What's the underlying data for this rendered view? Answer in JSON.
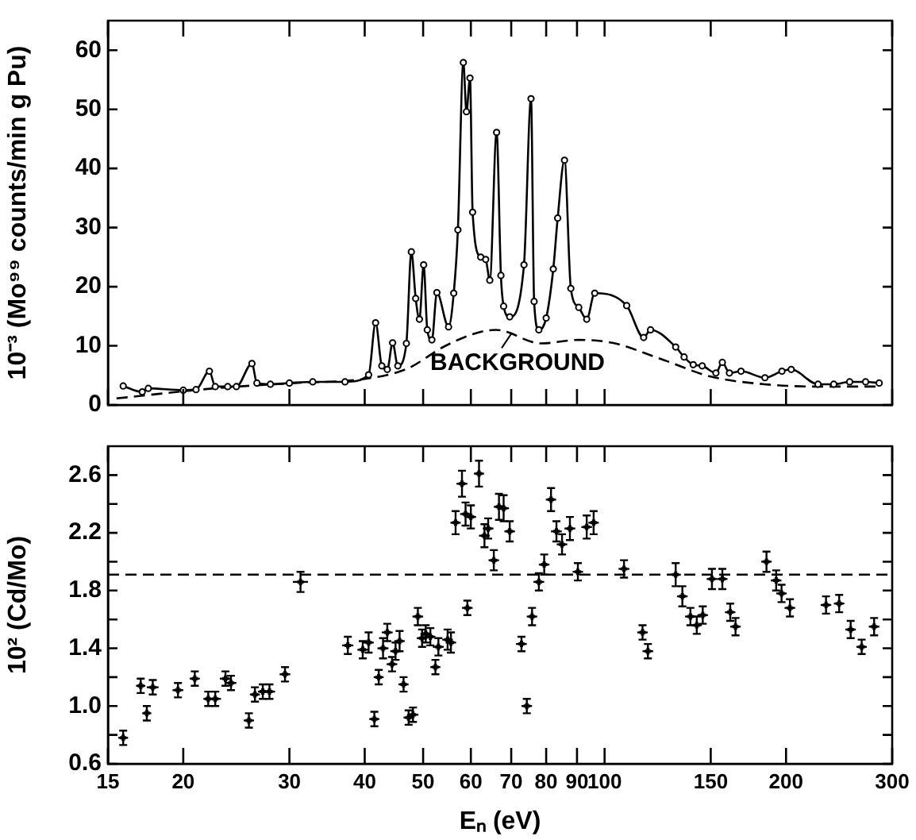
{
  "chart_data": [
    {
      "type": "line",
      "ylabel": "10⁻³ (Mo⁹⁹ counts/min g Pu)",
      "xlim": [
        15,
        300
      ],
      "xticks": [
        15,
        20,
        30,
        40,
        50,
        60,
        70,
        80,
        90,
        100,
        150,
        200,
        300
      ],
      "ylim": [
        0,
        65
      ],
      "yticks": [
        0,
        10,
        20,
        30,
        40,
        50,
        60
      ],
      "log": "x",
      "tick_labels": "y",
      "legend": false,
      "series": [
        {
          "color": "#000000",
          "marker": "circle",
          "line_style": "solid",
          "x": [
            15.9,
            17.1,
            17.5,
            20.0,
            21,
            22.1,
            22.6,
            23.7,
            24.5,
            26.0,
            26.5,
            27.9,
            30,
            32.8,
            37.1,
            40.6,
            41.7,
            42.7,
            43.6,
            44.5,
            45.4,
            46.9,
            47.8,
            48.6,
            49.3,
            50.1,
            50.8,
            51.7,
            52.7,
            55.1,
            56.2,
            57.1,
            58.3,
            59.0,
            59.8,
            60.4,
            62.3,
            63.5,
            64.5,
            66.2,
            67.3,
            68.0,
            69.6,
            73.5,
            75.5,
            76.4,
            77.8,
            80.0,
            82.2,
            83.6,
            85.8,
            87.9,
            90.6,
            93.4,
            96.3,
            108.8,
            116.1,
            119.2,
            131.2,
            135.5,
            140.3,
            145.2,
            153,
            156.8,
            161.1,
            168.4,
            184.5,
            196.9,
            204,
            226,
            240,
            255,
            271,
            285.5
          ],
          "values": [
            3.2,
            2.2,
            2.8,
            2.5,
            2.6,
            5.7,
            3.1,
            3.1,
            3.1,
            7.0,
            3.7,
            3.5,
            3.7,
            3.9,
            3.9,
            5.1,
            13.9,
            6.6,
            6.0,
            10.5,
            6.6,
            10.4,
            25.9,
            18.0,
            14.5,
            23.7,
            12.7,
            11.0,
            19.0,
            13.2,
            18.9,
            29.6,
            57.9,
            49.6,
            55.3,
            32.6,
            25.0,
            24.6,
            21.1,
            46.1,
            21.9,
            16.7,
            14.9,
            23.7,
            51.8,
            17.5,
            12.7,
            14.7,
            23.0,
            31.6,
            41.4,
            19.7,
            16.5,
            14.5,
            18.9,
            16.8,
            11.4,
            12.7,
            9.8,
            8.1,
            6.8,
            6.6,
            5.4,
            7.2,
            5.4,
            5.7,
            4.6,
            5.7,
            6.0,
            3.5,
            3.5,
            3.9,
            3.9,
            3.7
          ]
        },
        {
          "color": "#000000",
          "marker": "none",
          "line_style": "dashed",
          "x": [
            15.5,
            22.5,
            30.5,
            40,
            47,
            54,
            61,
            66,
            78.5,
            90.6,
            103,
            123,
            150,
            184,
            226,
            288
          ],
          "values": [
            1.1,
            2.8,
            3.7,
            4.4,
            6.1,
            9.8,
            12.1,
            12.7,
            10.4,
            11.0,
            10.5,
            7.9,
            4.8,
            3.5,
            3.1,
            3.1
          ]
        }
      ],
      "annotations": [
        {
          "text": "BACKGROUND",
          "x": 70,
          "y": 12.3
        }
      ]
    },
    {
      "type": "scatter",
      "xlabel": "Eₙ (eV)",
      "ylabel": "10² (Cd/Mo)",
      "xlim": [
        15,
        300
      ],
      "xticks": [
        15,
        20,
        30,
        40,
        50,
        60,
        70,
        80,
        90,
        100,
        150,
        200,
        300
      ],
      "ylim": [
        0.6,
        2.8
      ],
      "yticks": [
        0.6,
        {
          "value": 0.8,
          "label": null
        },
        {
          "value": 1,
          "label": "1.0"
        },
        {
          "value": 1.2,
          "label": null
        },
        1.4,
        {
          "value": 1.6,
          "label": null
        },
        1.8,
        {
          "value": 2,
          "label": null
        },
        2.2,
        {
          "value": 2.4,
          "label": null
        },
        2.6
      ],
      "log": "x",
      "legend": false,
      "marker": "cross",
      "ref_lines": [
        {
          "axis": "y",
          "value": 1.91,
          "line_style": "dashed"
        }
      ],
      "series": [
        {
          "color": "#000000",
          "x": [
            15.9,
            17.0,
            17.4,
            17.8,
            19.6,
            20.9,
            22.0,
            22.6,
            23.5,
            24.0,
            25.7,
            26.3,
            27.1,
            27.8,
            29.5,
            31.3,
            37.5,
            39.7,
            40.6,
            41.5,
            42.2,
            42.9,
            43.6,
            44.4,
            45.0,
            45.7,
            46.4,
            47.3,
            48.1,
            49.0,
            49.8,
            50.5,
            51.4,
            52.4,
            53.0,
            54.9,
            55.6,
            56.6,
            58.0,
            58.8,
            59.2,
            60.0,
            61.9,
            63.2,
            64.1,
            65.5,
            66.8,
            68.0,
            69.6,
            72.8,
            74.3,
            75.8,
            77.8,
            79.4,
            81.5,
            83.2,
            85.0,
            87.6,
            90.3,
            93.4,
            95.9,
            107.7,
            115.6,
            118.0,
            131.2,
            134.6,
            138.8,
            142.2,
            145.5,
            150.7,
            156.8,
            161.6,
            164.9,
            185.6,
            192.6,
            196.6,
            203,
            233,
            245,
            256,
            267,
            280
          ],
          "values": [
            0.78,
            1.14,
            0.95,
            1.13,
            1.11,
            1.19,
            1.05,
            1.05,
            1.19,
            1.16,
            0.9,
            1.08,
            1.1,
            1.1,
            1.22,
            1.86,
            1.42,
            1.39,
            1.44,
            0.91,
            1.2,
            1.4,
            1.51,
            1.29,
            1.38,
            1.45,
            1.15,
            0.92,
            0.94,
            1.62,
            1.47,
            1.5,
            1.48,
            1.27,
            1.41,
            1.46,
            1.44,
            2.27,
            2.54,
            2.33,
            1.68,
            2.31,
            2.61,
            2.18,
            2.23,
            2.01,
            2.38,
            2.37,
            2.21,
            1.43,
            1.0,
            1.62,
            1.86,
            1.98,
            2.43,
            2.21,
            2.12,
            2.23,
            1.93,
            2.24,
            2.27,
            1.95,
            1.51,
            1.38,
            1.91,
            1.76,
            1.62,
            1.56,
            1.63,
            1.88,
            1.88,
            1.65,
            1.55,
            2.0,
            1.87,
            1.78,
            1.68,
            1.7,
            1.71,
            1.53,
            1.41,
            1.55
          ],
          "errors": [
            0.05,
            0.05,
            0.05,
            0.05,
            0.05,
            0.05,
            0.05,
            0.05,
            0.05,
            0.05,
            0.05,
            0.05,
            0.05,
            0.05,
            0.05,
            0.07,
            0.06,
            0.06,
            0.07,
            0.05,
            0.05,
            0.07,
            0.06,
            0.05,
            0.06,
            0.07,
            0.05,
            0.05,
            0.05,
            0.06,
            0.06,
            0.06,
            0.06,
            0.05,
            0.06,
            0.07,
            0.07,
            0.08,
            0.09,
            0.08,
            0.05,
            0.08,
            0.09,
            0.08,
            0.07,
            0.07,
            0.09,
            0.09,
            0.07,
            0.05,
            0.05,
            0.06,
            0.06,
            0.07,
            0.08,
            0.07,
            0.07,
            0.08,
            0.06,
            0.08,
            0.08,
            0.06,
            0.05,
            0.05,
            0.08,
            0.07,
            0.06,
            0.06,
            0.06,
            0.07,
            0.07,
            0.06,
            0.06,
            0.07,
            0.07,
            0.06,
            0.06,
            0.06,
            0.06,
            0.06,
            0.05,
            0.06
          ],
          "xerrors": [
            0.3,
            0.3,
            0.3,
            0.4,
            0.4,
            0.4,
            0.4,
            0.5,
            0.5,
            0.5,
            0.5,
            0.5,
            0.5,
            0.6,
            0.6,
            0.9,
            0.8,
            0.8,
            0.8,
            0.8,
            0.8,
            0.9,
            0.9,
            0.9,
            0.9,
            0.9,
            0.9,
            0.9,
            1.0,
            1.0,
            1.0,
            1.0,
            1.0,
            1.0,
            1.1,
            1.1,
            1.1,
            1.1,
            1.2,
            1.2,
            1.2,
            1.2,
            1.2,
            1.3,
            1.3,
            1.3,
            1.3,
            1.4,
            1.4,
            1.5,
            1.5,
            1.5,
            1.6,
            1.6,
            1.6,
            1.7,
            1.7,
            1.8,
            1.8,
            1.9,
            1.9,
            2.2,
            2.3,
            2.4,
            2.6,
            2.7,
            2.8,
            2.8,
            2.9,
            3.0,
            3.1,
            3.2,
            3.3,
            3.7,
            3.9,
            3.9,
            4.1,
            4.7,
            4.9,
            5.1,
            5.3,
            5.6
          ]
        }
      ]
    }
  ]
}
